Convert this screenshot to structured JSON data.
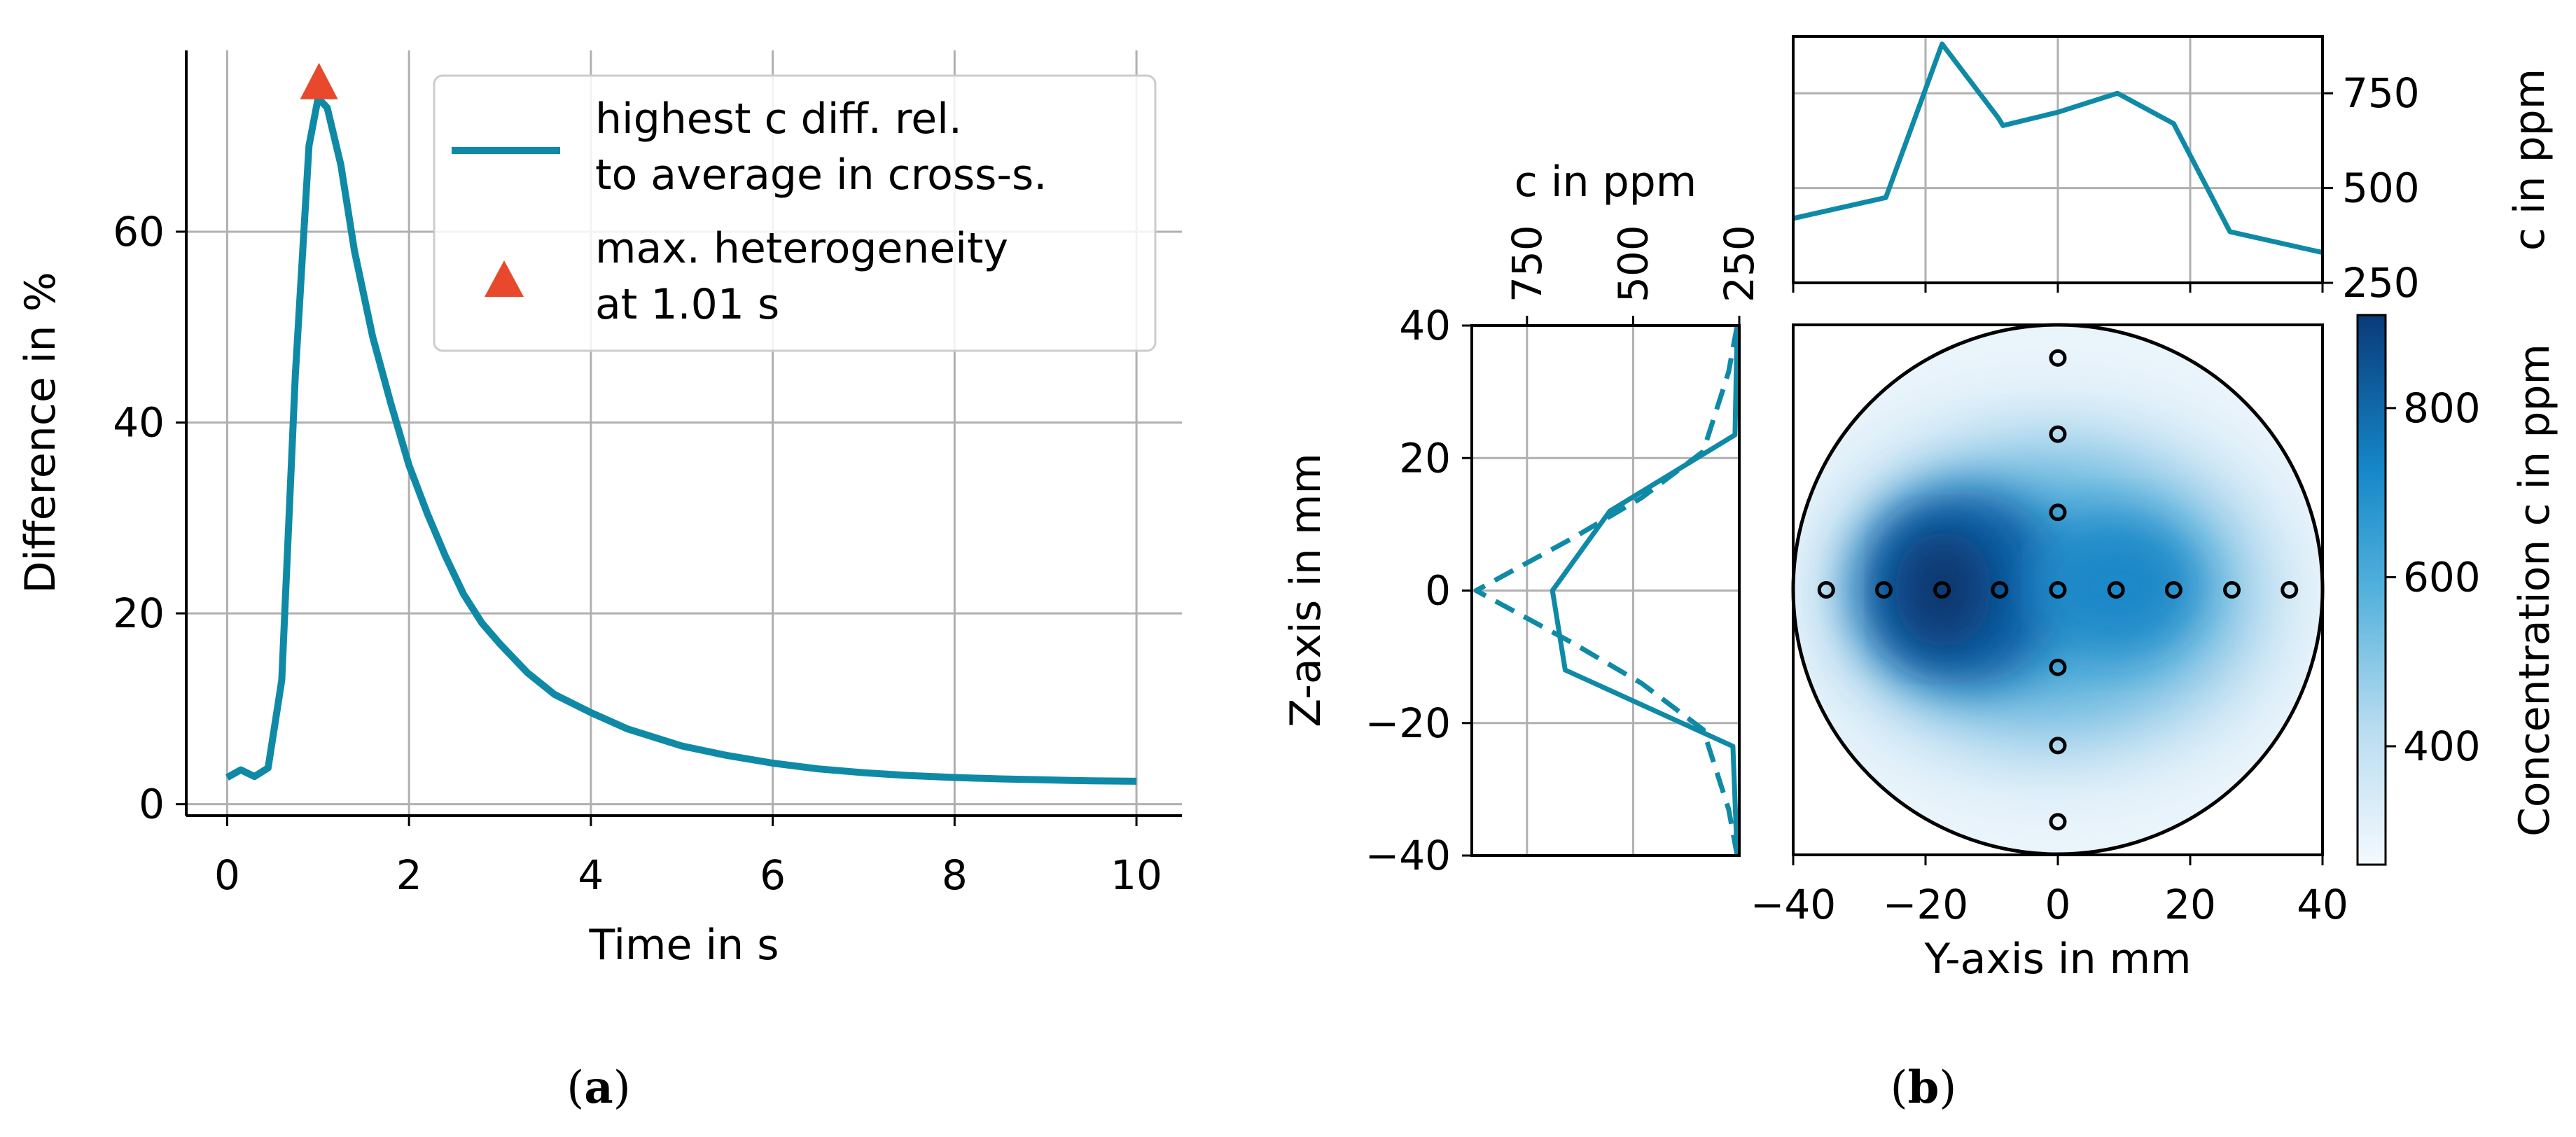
{
  "colors": {
    "line": "#0f8aa6",
    "marker": "#e8482b",
    "grid": "#b0b0b0",
    "axis": "#000000",
    "point": "#000000"
  },
  "panels": {
    "a": {
      "open": "(",
      "letter": "a",
      "close": ")"
    },
    "b": {
      "open": "(",
      "letter": "b",
      "close": ")"
    }
  },
  "chart_data": [
    {
      "id": "a",
      "type": "line",
      "xlabel": "Time in s",
      "ylabel": "Difference in %",
      "xlim": [
        -0.45,
        10.5
      ],
      "ylim": [
        -1.2,
        79
      ],
      "xticks": [
        0,
        2,
        4,
        6,
        8,
        10
      ],
      "yticks": [
        0,
        20,
        40,
        60
      ],
      "xtick_labels": [
        "0",
        "2",
        "4",
        "6",
        "8",
        "10"
      ],
      "ytick_labels": [
        "0",
        "20",
        "40",
        "60"
      ],
      "grid": true,
      "series": [
        {
          "name": "highest c diff. rel. to average in cross-s.",
          "x": [
            0,
            0.15,
            0.3,
            0.45,
            0.6,
            0.75,
            0.9,
            1.0,
            1.1,
            1.25,
            1.4,
            1.6,
            1.8,
            2.0,
            2.2,
            2.4,
            2.6,
            2.8,
            3.0,
            3.3,
            3.6,
            4.0,
            4.4,
            5.0,
            5.5,
            6.0,
            6.5,
            7.0,
            7.5,
            8.0,
            8.5,
            9.0,
            9.5,
            10.0
          ],
          "y": [
            2.8,
            3.6,
            2.9,
            3.8,
            13,
            45,
            69,
            74,
            73,
            67,
            58,
            49,
            42,
            35.5,
            30.5,
            26,
            22,
            19,
            16.8,
            13.8,
            11.5,
            9.6,
            7.9,
            6.1,
            5.1,
            4.3,
            3.7,
            3.3,
            3.0,
            2.8,
            2.65,
            2.55,
            2.45,
            2.4
          ]
        },
        {
          "name": "max. heterogeneity at 1.01 s",
          "type": "marker",
          "x": [
            1.01
          ],
          "y": [
            75.5
          ]
        }
      ],
      "legend": {
        "position": "top-right",
        "entries": [
          {
            "lines": [
              "highest c diff. rel.",
              "to average in cross-s."
            ]
          },
          {
            "lines": [
              "max. heterogeneity",
              "at 1.01 s"
            ]
          }
        ]
      }
    },
    {
      "id": "b-top",
      "type": "line",
      "ylabel": "c in ppm",
      "xlim": [
        -40,
        40
      ],
      "ylim": [
        250,
        900
      ],
      "yticks": [
        250,
        500,
        750
      ],
      "ytick_labels": [
        "250",
        "500",
        "750"
      ],
      "grid": true,
      "x": [
        -40,
        -26,
        -17.5,
        -9,
        -8.3,
        0,
        9,
        17.5,
        26,
        40
      ],
      "y": [
        420,
        475,
        880,
        685,
        665,
        700,
        750,
        670,
        385,
        330
      ]
    },
    {
      "id": "b-left",
      "type": "line",
      "xlabel": "c in ppm",
      "ylabel": "Z-axis in mm",
      "xlim": [
        880,
        250
      ],
      "ylim": [
        -40,
        40
      ],
      "xticks": [
        750,
        500,
        250
      ],
      "xtick_labels": [
        "750",
        "500",
        "250"
      ],
      "yticks": [
        -40,
        -20,
        0,
        20,
        40
      ],
      "ytick_labels": [
        "−40",
        "−20",
        "0",
        "20",
        "40"
      ],
      "grid": true,
      "series": [
        {
          "style": "solid",
          "z": [
            -40,
            -23.5,
            -12,
            0,
            12,
            23.5,
            40
          ],
          "c": [
            255,
            265,
            660,
            690,
            555,
            260,
            255
          ]
        },
        {
          "style": "dashed",
          "z": [
            -40,
            -33,
            -21,
            -14,
            -8,
            0,
            8,
            14,
            21,
            33,
            40
          ],
          "c": [
            255,
            275,
            335,
            480,
            640,
            870,
            640,
            480,
            335,
            275,
            255
          ]
        }
      ]
    },
    {
      "id": "b-main",
      "type": "heatmap",
      "xlabel": "Y-axis in mm",
      "xlim": [
        -40,
        40
      ],
      "ylim": [
        -40,
        40
      ],
      "xticks": [
        -40,
        -20,
        0,
        20,
        40
      ],
      "xtick_labels": [
        "−40",
        "−20",
        "0",
        "20",
        "40"
      ],
      "colorbar": {
        "label": "Concentration c in ppm",
        "range": [
          260,
          910
        ],
        "ticks": [
          400,
          600,
          800
        ],
        "tick_labels": [
          "400",
          "600",
          "800"
        ]
      },
      "sample_points": [
        {
          "y": -35,
          "z": 0
        },
        {
          "y": -26.3,
          "z": 0
        },
        {
          "y": -17.5,
          "z": 0
        },
        {
          "y": -8.8,
          "z": 0
        },
        {
          "y": 0,
          "z": 0
        },
        {
          "y": 8.8,
          "z": 0
        },
        {
          "y": 17.5,
          "z": 0
        },
        {
          "y": 26.3,
          "z": 0
        },
        {
          "y": 35,
          "z": 0
        },
        {
          "y": 0,
          "z": 35
        },
        {
          "y": 0,
          "z": 23.5
        },
        {
          "y": 0,
          "z": 11.7
        },
        {
          "y": 0,
          "z": -11.7
        },
        {
          "y": 0,
          "z": -23.5
        },
        {
          "y": 0,
          "z": -35
        }
      ]
    }
  ]
}
